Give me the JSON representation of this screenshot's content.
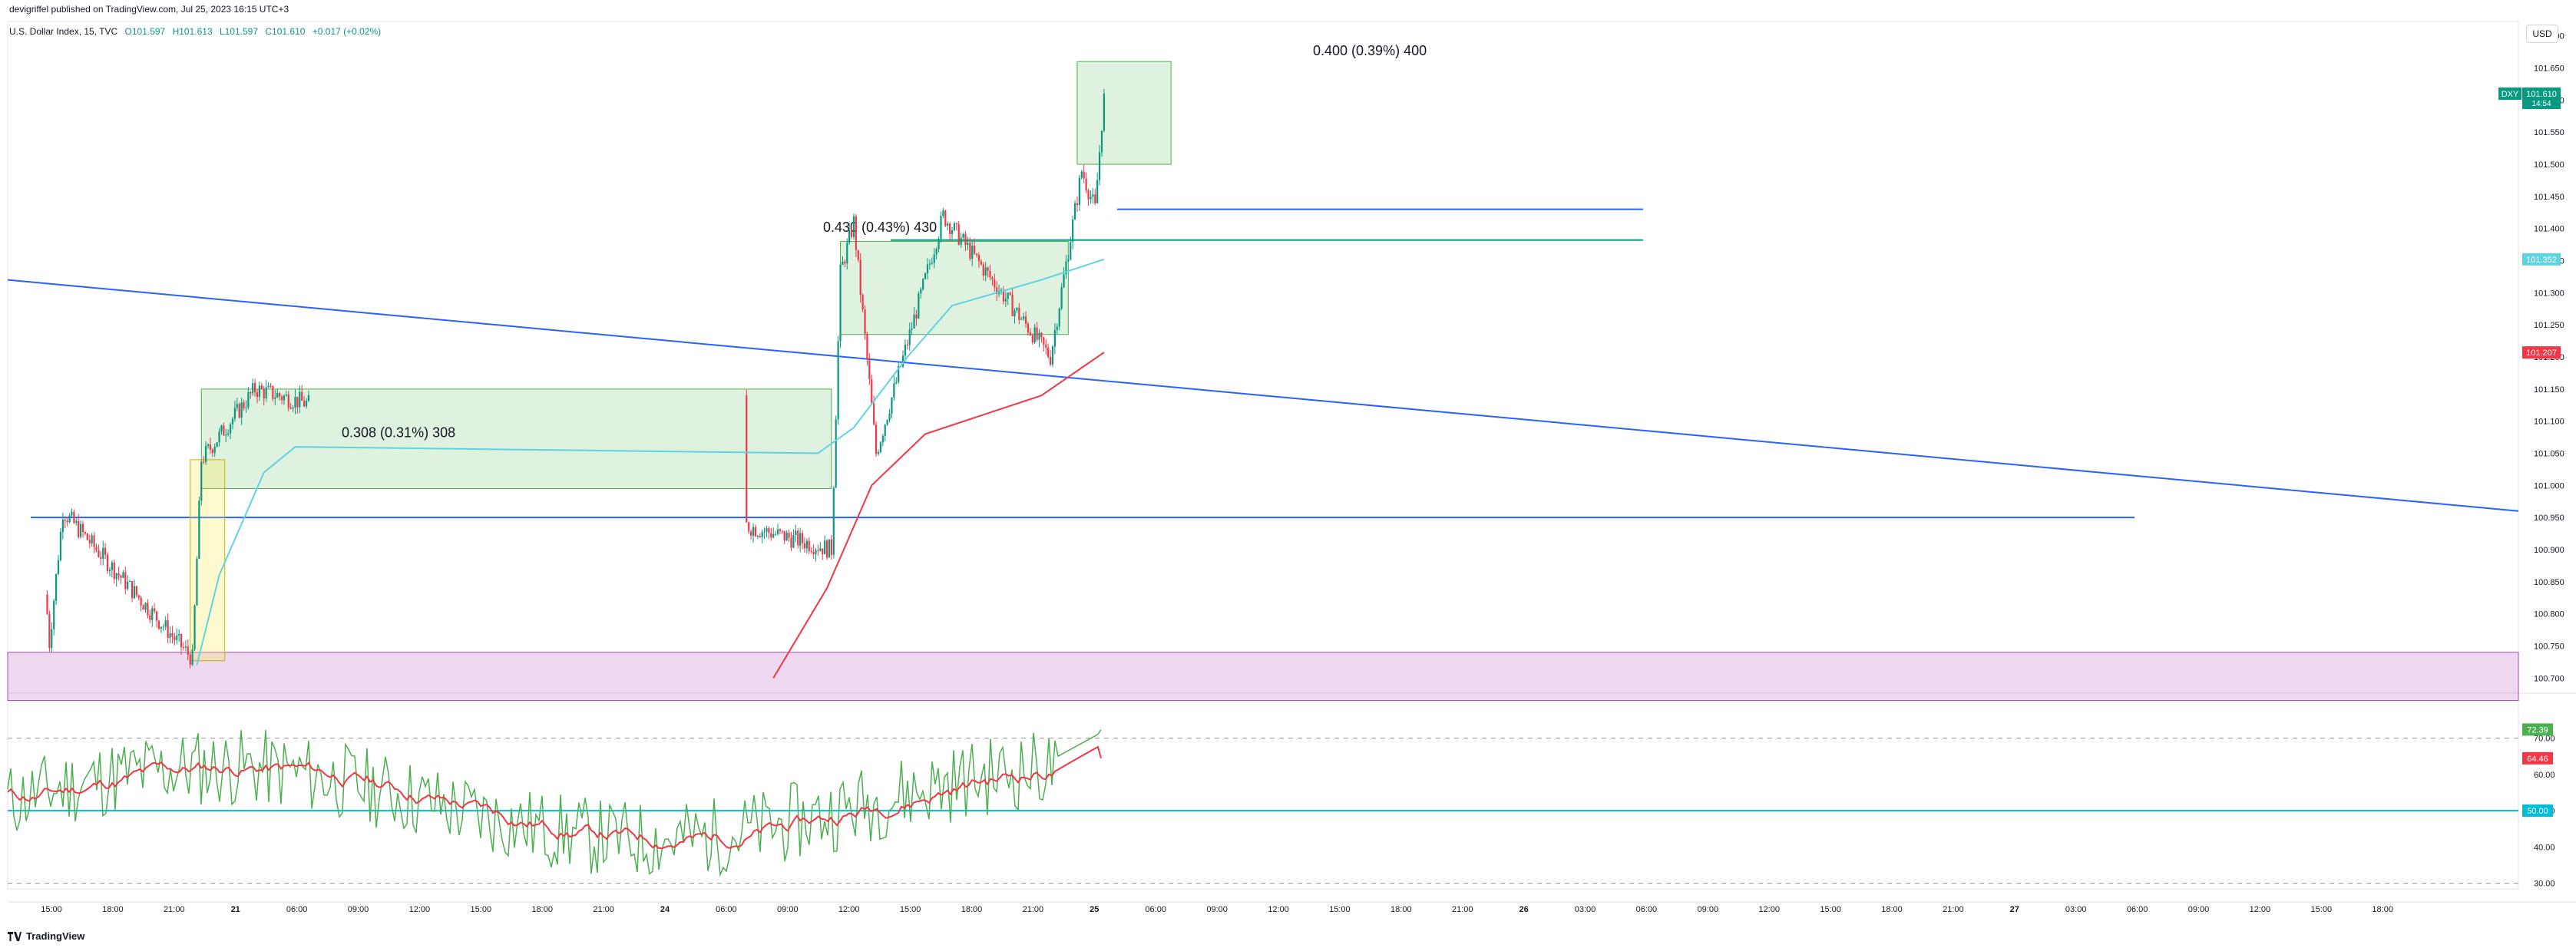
{
  "header": {
    "published": "devigriffel published on TradingView.com, Jul 25, 2023 16:15 UTC+3"
  },
  "symbol": {
    "name": "U.S. Dollar Index, 15, TVC",
    "open": "O101.597",
    "high": "H101.613",
    "low": "L101.597",
    "close": "C101.610",
    "change": "+0.017 (+0.02%)"
  },
  "currency_button": "USD",
  "footer": {
    "brand": "TradingView"
  },
  "chart_data": {
    "type": "candlestick",
    "price_axis": {
      "ticks": [
        "101.700",
        "101.650",
        "101.600",
        "101.550",
        "101.500",
        "101.450",
        "101.400",
        "101.350",
        "101.300",
        "101.250",
        "101.200",
        "101.150",
        "101.100",
        "101.050",
        "101.000",
        "100.950",
        "100.900",
        "100.850",
        "100.800",
        "100.750",
        "100.700"
      ],
      "ylim": [
        100.68,
        101.72
      ]
    },
    "time_axis": {
      "labels": [
        "15:00",
        "18:00",
        "21:00",
        "21",
        "06:00",
        "09:00",
        "12:00",
        "15:00",
        "18:00",
        "21:00",
        "24",
        "06:00",
        "09:00",
        "12:00",
        "15:00",
        "18:00",
        "21:00",
        "25",
        "06:00",
        "09:00",
        "12:00",
        "15:00",
        "18:00",
        "21:00",
        "26",
        "03:00",
        "06:00",
        "09:00",
        "12:00",
        "15:00",
        "18:00",
        "21:00",
        "27",
        "03:00",
        "06:00",
        "09:00",
        "12:00",
        "15:00",
        "18:00"
      ]
    },
    "price_badges": [
      {
        "label": "DXY",
        "value": "101.610",
        "sub": "14:54",
        "color": "#089981"
      },
      {
        "value": "101.352",
        "color": "#5fd4e0"
      },
      {
        "value": "101.207",
        "color": "#f23645"
      }
    ],
    "measure_labels": [
      "0.308 (0.31%) 308",
      "0.430 (0.43%) 430",
      "0.400 (0.39%) 400"
    ],
    "horizontal_levels": [
      100.95,
      101.43,
      101.382
    ],
    "support_zone": [
      100.665,
      100.74
    ],
    "ohlc_key_points": [
      {
        "time": "17:45 Jul 20",
        "price": 100.72
      },
      {
        "time": "19:30 Jul 20",
        "price": 100.96
      },
      {
        "time": "10:00 Jul 21",
        "price": 100.73
      },
      {
        "time": "11:00 Jul 21",
        "price": 101.04
      },
      {
        "time": "17:00 Jul 21",
        "price": 101.15
      },
      {
        "time": "09:30 Jul 24",
        "price": 100.9
      },
      {
        "time": "10:30 Jul 24",
        "price": 101.33
      },
      {
        "time": "12:00 Jul 24",
        "price": 101.41
      },
      {
        "time": "14:30 Jul 24",
        "price": 101.05
      },
      {
        "time": "22:00 Jul 24",
        "price": 101.42
      },
      {
        "time": "10:00 Jul 25",
        "price": 101.2
      },
      {
        "time": "13:30 Jul 25",
        "price": 101.49
      },
      {
        "time": "15:00 Jul 25",
        "price": 101.43
      },
      {
        "time": "16:00 Jul 25",
        "price": 101.61
      }
    ],
    "rsi": {
      "ticks": [
        "70.00",
        "60.00",
        "50.00",
        "40.00",
        "30.00"
      ],
      "ylim": [
        28,
        82
      ],
      "badges": [
        {
          "value": "72.39",
          "color": "#4caf50"
        },
        {
          "value": "64.46",
          "color": "#f23645"
        },
        {
          "value": "50.00",
          "color": "#00bcd4"
        }
      ]
    }
  }
}
